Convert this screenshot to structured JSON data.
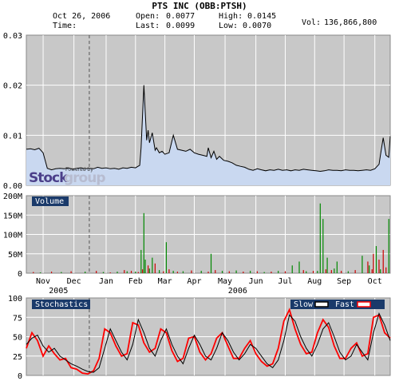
{
  "header": {
    "date": "Oct 26, 2006",
    "time_label": "Time:",
    "title": "PTS INC (OBB:PTSH)",
    "open_label": "Open:",
    "open": "0.0077",
    "last_label": "Last:",
    "last": "0.0099",
    "high_label": "High:",
    "high": "0.0145",
    "low_label": "Low:",
    "low": "0.0070",
    "vol_label": "Vol:",
    "vol": "136,866,800"
  },
  "watermark": {
    "powered": "Powered by",
    "stock": "Stock",
    "group": "group"
  },
  "colors": {
    "panel_bg": "#c8c8c8",
    "price_fill": "#c9d8f0",
    "line": "#000000",
    "label_bg": "#1a3a6a",
    "fast": "#ff0000",
    "slow": "#000000",
    "vol_green": "#008800",
    "vol_red": "#cc0000"
  },
  "chart_data": [
    {
      "type": "area",
      "name": "price",
      "yticks": [
        "0.03",
        "0.02",
        "0.01",
        "0.00"
      ],
      "ylim": [
        0,
        0.03
      ],
      "xlim": [
        0,
        260
      ],
      "x": [
        0,
        3,
        6,
        9,
        12,
        15,
        18,
        21,
        24,
        27,
        30,
        33,
        36,
        39,
        42,
        45,
        48,
        51,
        54,
        57,
        60,
        63,
        66,
        69,
        72,
        75,
        78,
        81,
        82,
        84,
        86,
        87,
        88,
        90,
        92,
        93,
        95,
        97,
        99,
        102,
        105,
        108,
        111,
        114,
        117,
        120,
        123,
        126,
        129,
        130,
        132,
        134,
        136,
        138,
        141,
        144,
        147,
        150,
        153,
        156,
        159,
        162,
        165,
        168,
        171,
        174,
        177,
        180,
        183,
        186,
        189,
        192,
        195,
        198,
        201,
        204,
        207,
        210,
        213,
        216,
        219,
        222,
        225,
        228,
        231,
        234,
        237,
        240,
        243,
        246,
        249,
        252,
        253,
        255,
        257,
        259,
        260
      ],
      "values": [
        0.0072,
        0.0073,
        0.0071,
        0.0074,
        0.0065,
        0.0034,
        0.0031,
        0.0033,
        0.0034,
        0.0033,
        0.0035,
        0.0032,
        0.0034,
        0.0035,
        0.0033,
        0.0034,
        0.0033,
        0.0036,
        0.0034,
        0.0035,
        0.0033,
        0.0034,
        0.0032,
        0.0035,
        0.0034,
        0.0036,
        0.0035,
        0.004,
        0.0075,
        0.02,
        0.009,
        0.011,
        0.0085,
        0.0105,
        0.007,
        0.0075,
        0.0065,
        0.0068,
        0.0062,
        0.0065,
        0.01,
        0.0072,
        0.007,
        0.0068,
        0.0072,
        0.0065,
        0.0062,
        0.006,
        0.0058,
        0.0075,
        0.0055,
        0.0068,
        0.0052,
        0.0058,
        0.005,
        0.0048,
        0.0045,
        0.004,
        0.0038,
        0.0036,
        0.0032,
        0.003,
        0.0033,
        0.0031,
        0.0029,
        0.0031,
        0.003,
        0.0032,
        0.003,
        0.0031,
        0.0029,
        0.0031,
        0.003,
        0.0032,
        0.0031,
        0.003,
        0.0029,
        0.0028,
        0.0029,
        0.0031,
        0.003,
        0.003,
        0.0029,
        0.0031,
        0.003,
        0.003,
        0.0029,
        0.003,
        0.0031,
        0.003,
        0.0033,
        0.0042,
        0.006,
        0.0095,
        0.006,
        0.0056,
        0.0098
      ]
    },
    {
      "type": "bar",
      "name": "volume",
      "label": "Volume",
      "yticks": [
        "200M",
        "150M",
        "100M",
        "50M",
        "0"
      ],
      "ylim": [
        0,
        200
      ],
      "xlim": [
        0,
        260
      ],
      "x": [
        5,
        10,
        18,
        25,
        32,
        42,
        50,
        55,
        60,
        65,
        70,
        72,
        75,
        78,
        80,
        82,
        83,
        84,
        85,
        87,
        88,
        90,
        92,
        95,
        98,
        100,
        102,
        105,
        108,
        112,
        118,
        125,
        130,
        132,
        135,
        140,
        145,
        150,
        155,
        160,
        165,
        170,
        175,
        180,
        185,
        190,
        195,
        198,
        200,
        205,
        208,
        210,
        212,
        214,
        215,
        218,
        220,
        222,
        225,
        230,
        235,
        240,
        244,
        245,
        247,
        248,
        250,
        252,
        253,
        255,
        257,
        259
      ],
      "values": [
        3,
        2,
        4,
        3,
        5,
        4,
        6,
        3,
        2,
        4,
        8,
        5,
        6,
        4,
        3,
        60,
        10,
        155,
        35,
        20,
        12,
        40,
        25,
        8,
        5,
        80,
        10,
        6,
        4,
        5,
        7,
        6,
        4,
        50,
        8,
        6,
        5,
        7,
        4,
        6,
        5,
        3,
        4,
        6,
        5,
        20,
        30,
        8,
        5,
        6,
        6,
        180,
        140,
        10,
        40,
        8,
        12,
        30,
        6,
        5,
        8,
        45,
        30,
        20,
        10,
        50,
        70,
        35,
        10,
        60,
        15,
        140
      ],
      "colors": [
        "r",
        "g",
        "r",
        "g",
        "r",
        "g",
        "r",
        "g",
        "r",
        "g",
        "r",
        "g",
        "r",
        "g",
        "r",
        "g",
        "r",
        "g",
        "g",
        "r",
        "g",
        "g",
        "r",
        "g",
        "r",
        "g",
        "r",
        "g",
        "r",
        "g",
        "r",
        "g",
        "r",
        "g",
        "r",
        "g",
        "r",
        "g",
        "r",
        "g",
        "r",
        "g",
        "r",
        "g",
        "r",
        "g",
        "g",
        "r",
        "g",
        "r",
        "g",
        "g",
        "g",
        "r",
        "g",
        "r",
        "g",
        "g",
        "r",
        "g",
        "r",
        "g",
        "r",
        "g",
        "r",
        "r",
        "g",
        "r",
        "g",
        "r",
        "r",
        "g"
      ]
    },
    {
      "type": "line",
      "name": "stochastics",
      "label": "Stochastics",
      "legend": [
        "Slow",
        "Fast"
      ],
      "legend_position": "top-right",
      "yticks": [
        "100",
        "75",
        "50",
        "25",
        "0"
      ],
      "ylim": [
        0,
        100
      ],
      "xlim": [
        0,
        260
      ],
      "xticks": [
        "Nov",
        "Dec",
        "Jan",
        "Feb",
        "Mar",
        "Apr",
        "May",
        "Jun",
        "Jul",
        "Aug",
        "Sep",
        "Oct"
      ],
      "xtick_pos": [
        12,
        34,
        57,
        78,
        99,
        120,
        142,
        164,
        185,
        206,
        227,
        249
      ],
      "year_labels": [
        "2005",
        "2006"
      ],
      "year_pos": [
        23,
        151
      ],
      "x": [
        0,
        4,
        8,
        12,
        16,
        20,
        24,
        28,
        32,
        36,
        40,
        44,
        48,
        52,
        56,
        60,
        64,
        68,
        72,
        76,
        80,
        84,
        88,
        92,
        96,
        100,
        104,
        108,
        112,
        116,
        120,
        124,
        128,
        132,
        136,
        140,
        144,
        148,
        152,
        156,
        160,
        164,
        168,
        172,
        176,
        180,
        184,
        188,
        192,
        196,
        200,
        204,
        208,
        212,
        216,
        220,
        224,
        228,
        232,
        236,
        240,
        244,
        248,
        252,
        256,
        260
      ],
      "slow": [
        40,
        48,
        52,
        38,
        30,
        35,
        25,
        20,
        15,
        12,
        8,
        5,
        4,
        10,
        35,
        60,
        45,
        30,
        20,
        40,
        72,
        55,
        35,
        25,
        45,
        60,
        40,
        25,
        15,
        35,
        52,
        40,
        25,
        20,
        35,
        55,
        45,
        30,
        20,
        28,
        40,
        35,
        25,
        15,
        10,
        20,
        45,
        78,
        70,
        50,
        35,
        25,
        40,
        60,
        68,
        50,
        30,
        20,
        25,
        40,
        30,
        20,
        55,
        80,
        65,
        45
      ],
      "fast": [
        35,
        55,
        45,
        25,
        38,
        28,
        20,
        22,
        10,
        8,
        3,
        2,
        6,
        22,
        60,
        55,
        38,
        25,
        28,
        68,
        65,
        42,
        30,
        35,
        60,
        55,
        32,
        18,
        22,
        48,
        50,
        30,
        20,
        28,
        48,
        55,
        38,
        22,
        22,
        35,
        45,
        28,
        18,
        12,
        15,
        35,
        70,
        85,
        60,
        40,
        28,
        30,
        55,
        72,
        62,
        38,
        22,
        22,
        35,
        42,
        25,
        28,
        75,
        78,
        55,
        48
      ]
    }
  ]
}
